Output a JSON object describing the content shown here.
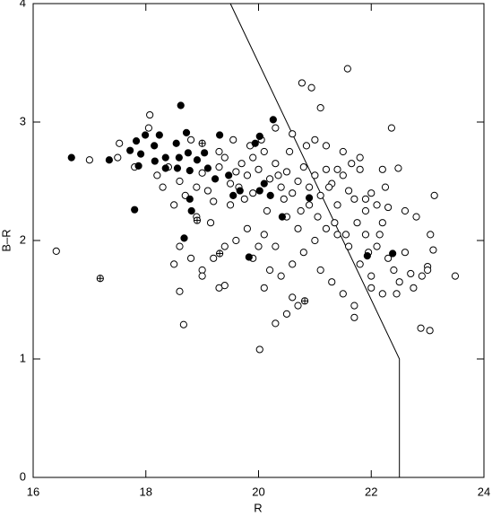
{
  "chart_data": {
    "type": "scatter",
    "x_label": "R",
    "y_label": "B–R",
    "xlim": [
      16,
      24
    ],
    "ylim": [
      0,
      4
    ],
    "xticks": [
      16,
      18,
      20,
      22,
      24
    ],
    "yticks": [
      0,
      1,
      2,
      3,
      4
    ],
    "grid": false,
    "series": [
      {
        "marker": "open",
        "color": "#000000",
        "x": [
          16.41,
          17.0,
          17.53,
          18.07,
          18.67,
          20.02,
          21.58,
          20.77,
          20.94,
          22.36,
          22.88,
          23.04,
          23.49,
          23.12,
          22.48,
          18.2,
          18.3,
          18.4,
          18.6,
          18.7,
          18.9,
          19.0,
          19.1,
          19.2,
          19.3,
          19.4,
          19.5,
          19.6,
          19.7,
          19.8,
          19.9,
          20.0,
          20.1,
          20.2,
          20.3,
          20.4,
          20.5,
          20.6,
          20.7,
          20.8,
          20.9,
          21.0,
          21.1,
          21.2,
          21.3,
          21.4,
          21.5,
          21.6,
          21.7,
          21.8,
          21.9,
          22.0,
          22.1,
          22.2,
          22.3,
          20.05,
          20.3,
          20.6,
          21.0,
          21.2,
          21.1,
          21.5,
          21.8,
          22.2,
          22.6,
          22.8,
          23.05,
          23.1,
          22.9,
          22.75,
          23.0,
          22.5,
          22.2,
          22.0,
          21.8,
          21.6,
          21.4,
          21.2,
          21.0,
          20.8,
          20.6,
          20.4,
          20.2,
          20.0,
          19.8,
          19.6,
          19.4,
          19.2,
          19.0,
          18.8,
          18.6,
          18.5,
          18.6,
          19.0,
          19.3,
          19.4,
          20.1,
          20.3,
          20.5,
          20.7,
          20.9,
          21.1,
          21.3,
          21.5,
          21.7,
          21.7,
          20.7,
          20.6,
          20.5,
          20.3,
          20.1,
          19.9,
          21.9,
          22.1,
          22.3,
          22.4,
          22.6,
          22.7,
          23.0,
          22.45,
          22.0,
          18.5,
          18.9,
          19.15,
          19.5,
          19.75,
          19.9,
          20.15,
          20.45,
          20.75,
          21.05,
          21.35,
          21.55,
          21.75,
          21.9,
          22.25,
          21.4,
          21.65,
          20.85,
          20.55,
          19.85,
          19.55,
          19.3,
          18.8,
          17.5,
          17.8,
          18.05,
          21.25,
          20.35,
          19.65,
          22.15,
          21.95
        ],
        "values": [
          1.91,
          2.68,
          2.82,
          3.06,
          1.29,
          1.08,
          3.45,
          3.33,
          3.29,
          2.95,
          1.26,
          1.24,
          1.7,
          2.38,
          2.61,
          2.55,
          2.45,
          2.62,
          2.5,
          2.38,
          2.45,
          2.57,
          2.42,
          2.33,
          2.62,
          2.7,
          2.48,
          2.58,
          2.65,
          2.55,
          2.7,
          2.6,
          2.75,
          2.52,
          2.65,
          2.45,
          2.58,
          2.4,
          2.5,
          2.62,
          2.45,
          2.55,
          2.38,
          2.6,
          2.48,
          2.3,
          2.55,
          2.42,
          2.35,
          2.6,
          2.25,
          2.4,
          2.3,
          2.15,
          2.28,
          2.85,
          2.95,
          2.9,
          2.85,
          2.8,
          3.12,
          2.75,
          2.7,
          2.6,
          2.25,
          2.2,
          2.05,
          1.92,
          1.7,
          1.6,
          1.78,
          1.65,
          1.55,
          1.7,
          1.8,
          1.95,
          2.05,
          2.1,
          2.0,
          1.9,
          1.8,
          1.7,
          1.75,
          1.95,
          2.1,
          2.0,
          1.95,
          1.85,
          1.75,
          1.85,
          1.95,
          1.8,
          1.57,
          1.7,
          1.6,
          1.62,
          2.05,
          1.95,
          2.2,
          2.1,
          2.3,
          1.75,
          1.65,
          1.55,
          1.45,
          1.35,
          1.45,
          1.52,
          1.38,
          1.3,
          1.6,
          1.85,
          2.05,
          1.95,
          1.85,
          1.75,
          1.9,
          1.72,
          1.75,
          1.55,
          1.6,
          2.3,
          2.2,
          2.15,
          2.3,
          2.35,
          2.4,
          2.25,
          2.35,
          2.25,
          2.2,
          2.15,
          2.05,
          2.15,
          2.35,
          2.45,
          2.6,
          2.65,
          2.8,
          2.75,
          2.8,
          2.85,
          2.75,
          2.85,
          2.7,
          2.62,
          2.95,
          2.45,
          2.55,
          2.45,
          2.05,
          1.9
        ]
      },
      {
        "marker": "filled",
        "color": "#000000",
        "x": [
          16.68,
          17.35,
          17.72,
          17.83,
          17.99,
          17.91,
          17.87,
          18.15,
          18.16,
          18.24,
          18.35,
          18.35,
          18.54,
          18.59,
          18.56,
          18.62,
          18.72,
          18.75,
          18.78,
          18.91,
          19.04,
          19.1,
          19.31,
          17.8,
          18.78,
          18.81,
          18.68,
          19.67,
          19.94,
          20.02,
          20.26,
          20.1,
          20.02,
          20.21,
          19.83,
          20.42,
          19.47,
          19.23,
          19.55,
          20.9,
          21.93,
          22.38
        ],
        "values": [
          2.7,
          2.68,
          2.76,
          2.84,
          2.89,
          2.73,
          2.63,
          2.8,
          2.67,
          2.89,
          2.7,
          2.61,
          2.82,
          2.7,
          2.61,
          3.14,
          2.91,
          2.74,
          2.59,
          2.68,
          2.74,
          2.61,
          2.89,
          2.26,
          2.35,
          2.25,
          2.02,
          2.42,
          2.82,
          2.88,
          3.02,
          2.48,
          2.42,
          2.38,
          1.86,
          2.2,
          2.55,
          2.52,
          2.38,
          2.36,
          1.87,
          1.89
        ]
      },
      {
        "marker": "cross",
        "color": "#000000",
        "x": [
          17.19,
          19.31,
          19.0,
          20.82,
          18.91
        ],
        "values": [
          1.68,
          1.89,
          2.82,
          1.49,
          2.17
        ]
      }
    ],
    "line": {
      "color": "#000000",
      "x": [
        19.5,
        22.5,
        22.5
      ],
      "y": [
        4,
        1,
        0
      ]
    }
  }
}
